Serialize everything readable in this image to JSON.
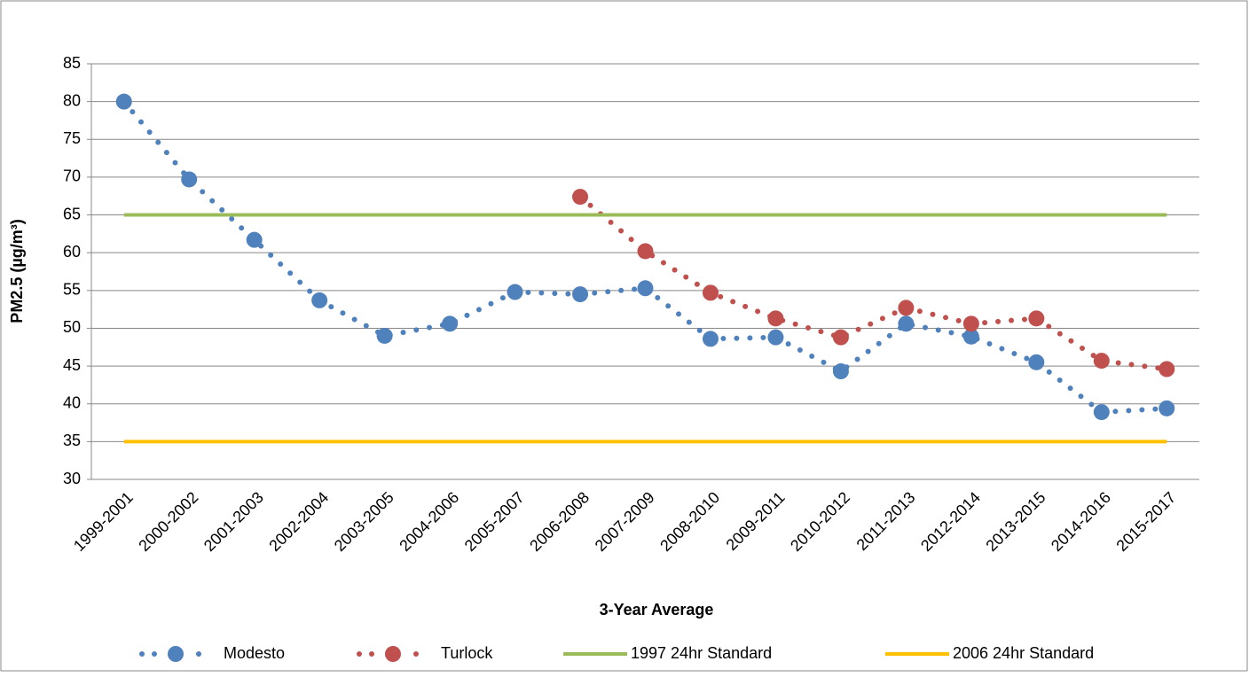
{
  "chart_data": {
    "type": "line",
    "y_label": "PM2.5 (µg/m³)",
    "x_label": "3-Year Average",
    "categories": [
      "1999-2001",
      "2000-2002",
      "2001-2003",
      "2002-2004",
      "2003-2005",
      "2004-2006",
      "2005-2007",
      "2006-2008",
      "2007-2009",
      "2008-2010",
      "2009-2011",
      "2010-2012",
      "2011-2013",
      "2012-2014",
      "2013-2015",
      "2014-2016",
      "2015-2017"
    ],
    "series": [
      {
        "name": "Modesto",
        "color": "#4f81bd",
        "line_style": "dotted",
        "values": [
          80,
          69.7,
          61.7,
          53.7,
          49,
          50.6,
          54.8,
          54.5,
          55.3,
          48.6,
          48.8,
          44.3,
          50.6,
          48.9,
          45.5,
          38.9,
          39.4
        ]
      },
      {
        "name": "Turlock",
        "color": "#c0504d",
        "line_style": "dotted",
        "values": [
          null,
          null,
          null,
          null,
          null,
          null,
          null,
          67.4,
          60.2,
          54.7,
          51.3,
          48.8,
          52.7,
          50.6,
          51.3,
          45.7,
          44.6
        ]
      },
      {
        "name": "1997 24hr Standard",
        "color": "#9bbb59",
        "line_style": "solid",
        "values": [
          65,
          65,
          65,
          65,
          65,
          65,
          65,
          65,
          65,
          65,
          65,
          65,
          65,
          65,
          65,
          65,
          65
        ]
      },
      {
        "name": "2006 24hr Standard",
        "color": "#ffc000",
        "line_style": "solid",
        "values": [
          35,
          35,
          35,
          35,
          35,
          35,
          35,
          35,
          35,
          35,
          35,
          35,
          35,
          35,
          35,
          35,
          35
        ]
      }
    ],
    "ylim": [
      30,
      85
    ],
    "yticks": [
      30,
      35,
      40,
      45,
      50,
      55,
      60,
      65,
      70,
      75,
      80,
      85
    ],
    "grid": true,
    "legend": "bottom"
  }
}
